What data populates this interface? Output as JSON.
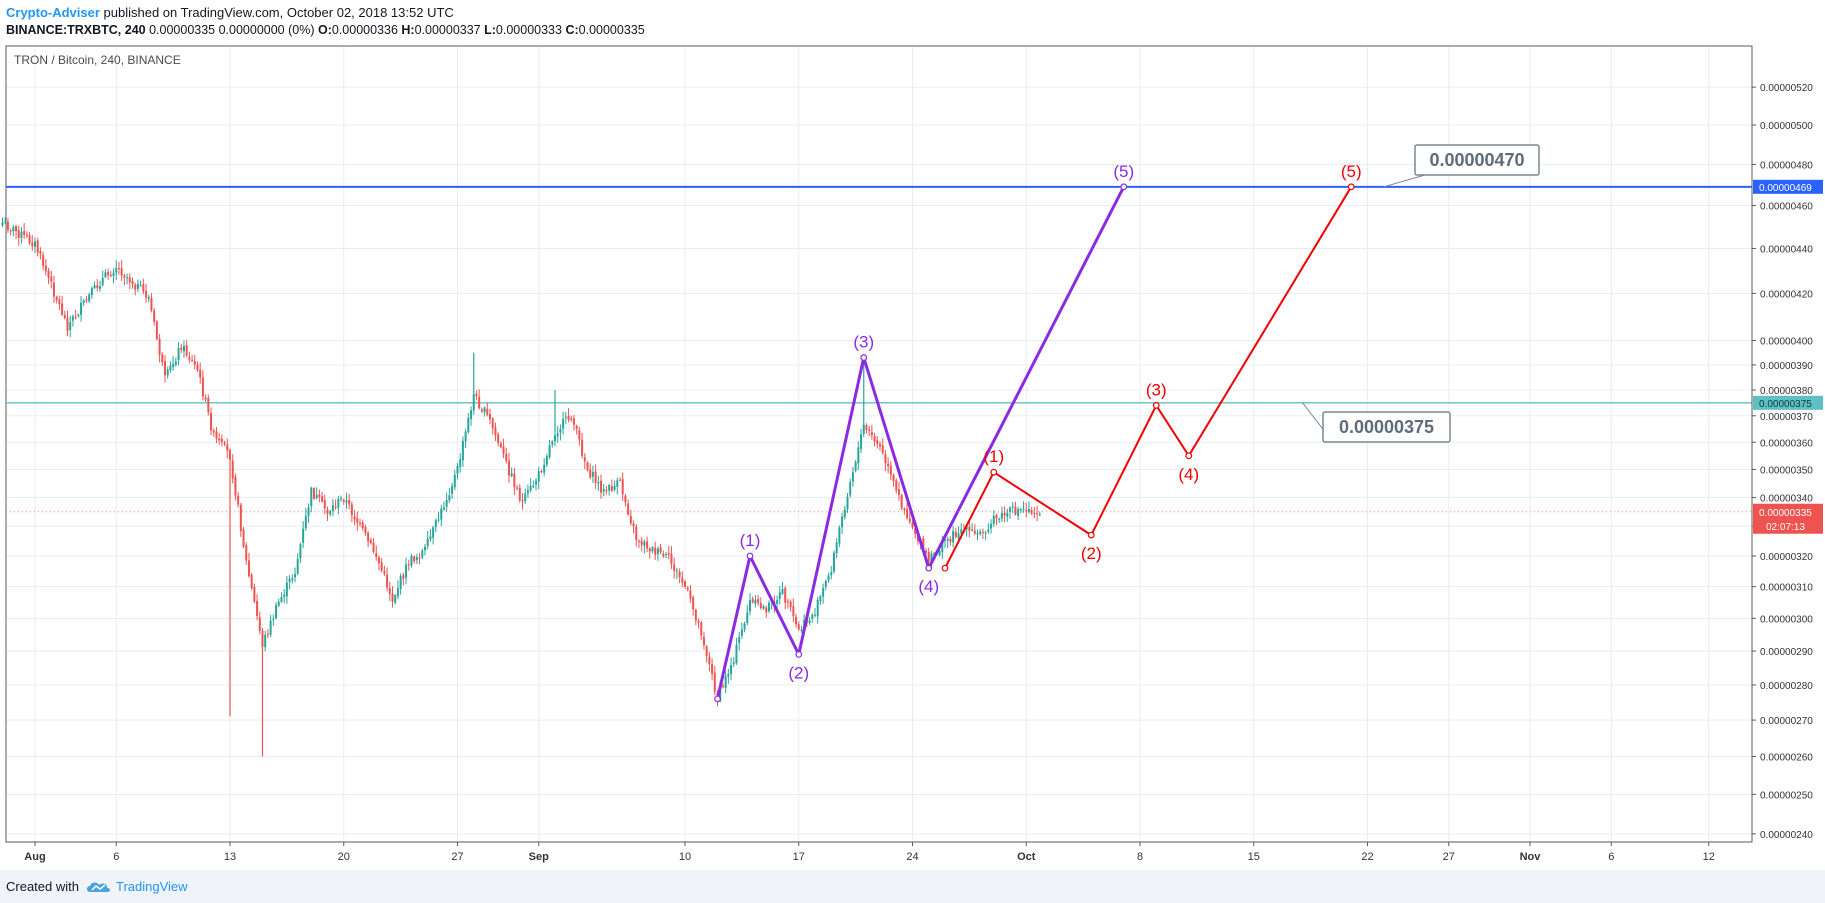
{
  "header": {
    "author": "Crypto-Adviser",
    "published": " published on TradingView.com, October 02, 2018 13:52 UTC",
    "symbol": "BINANCE:TRXBTC, 240",
    "quote": " 0.00000335 0.00000000 (0%) ",
    "o_label": "O:",
    "o_value": "0.00000336 ",
    "h_label": "H:",
    "h_value": "0.00000337 ",
    "l_label": "L:",
    "l_value": "0.00000333 ",
    "c_label": "C:",
    "c_value": "0.00000335"
  },
  "footer": {
    "created_with": "Created with",
    "brand": "TradingView",
    "logo_icon": "tradingview-cloud-icon"
  },
  "chart_data": {
    "type": "candlestick",
    "legend": "TRON / Bitcoin, 240, BINANCE",
    "colors": {
      "up": "#26a69a",
      "down": "#ef5350",
      "purple_wave": "#8a2be2",
      "red_wave": "#f00000",
      "target_high": "#2962ff",
      "target_low": "#5fc0c3",
      "label_box_text": "#5d6b7a"
    },
    "x_axis": {
      "ticks": [
        "Aug",
        "6",
        "13",
        "20",
        "27",
        "Sep",
        "10",
        "17",
        "24",
        "Oct",
        "8",
        "15",
        "22",
        "27",
        "Nov",
        "6",
        "12"
      ],
      "tick_dates": [
        "2018-08-01",
        "2018-08-06",
        "2018-08-13",
        "2018-08-20",
        "2018-08-27",
        "2018-09-01",
        "2018-09-10",
        "2018-09-17",
        "2018-09-24",
        "2018-10-01",
        "2018-10-08",
        "2018-10-15",
        "2018-10-22",
        "2018-10-27",
        "2018-11-01",
        "2018-11-06",
        "2018-11-12"
      ]
    },
    "y_axis": {
      "ticks": [
        "0.00000520",
        "0.00000500",
        "0.00000480",
        "0.00000460",
        "0.00000440",
        "0.00000420",
        "0.00000400",
        "0.00000390",
        "0.00000380",
        "0.00000370",
        "0.00000360",
        "0.00000350",
        "0.00000340",
        "0.00000330",
        "0.00000320",
        "0.00000310",
        "0.00000300",
        "0.00000290",
        "0.00000280",
        "0.00000270",
        "0.00000260",
        "0.00000250",
        "0.00000240"
      ],
      "tick_values": [
        520,
        500,
        480,
        460,
        440,
        420,
        400,
        390,
        380,
        370,
        360,
        350,
        340,
        330,
        320,
        310,
        300,
        290,
        280,
        270,
        260,
        250,
        240
      ],
      "value_unit": "1e-8 BTC",
      "scale": "log",
      "range": [
        238,
        522
      ]
    },
    "price_path": {
      "description_points": [
        {
          "date": "2018-07-30",
          "price": 452
        },
        {
          "date": "2018-08-01",
          "price": 442
        },
        {
          "date": "2018-08-03",
          "price": 406
        },
        {
          "date": "2018-08-05",
          "price": 425
        },
        {
          "date": "2018-08-06",
          "price": 432
        },
        {
          "date": "2018-08-08",
          "price": 418
        },
        {
          "date": "2018-08-09",
          "price": 384
        },
        {
          "date": "2018-08-10",
          "price": 398
        },
        {
          "date": "2018-08-11",
          "price": 388
        },
        {
          "date": "2018-08-12",
          "price": 362
        },
        {
          "date": "2018-08-13",
          "price": 355
        },
        {
          "date": "2018-08-14",
          "price": 318
        },
        {
          "date": "2018-08-15",
          "price": 292
        },
        {
          "date": "2018-08-16",
          "price": 305
        },
        {
          "date": "2018-08-17",
          "price": 315
        },
        {
          "date": "2018-08-18",
          "price": 342
        },
        {
          "date": "2018-08-19",
          "price": 335
        },
        {
          "date": "2018-08-20",
          "price": 340
        },
        {
          "date": "2018-08-22",
          "price": 320
        },
        {
          "date": "2018-08-23",
          "price": 306
        },
        {
          "date": "2018-08-24",
          "price": 318
        },
        {
          "date": "2018-08-25",
          "price": 322
        },
        {
          "date": "2018-08-26",
          "price": 335
        },
        {
          "date": "2018-08-27",
          "price": 350
        },
        {
          "date": "2018-08-28",
          "price": 378
        },
        {
          "date": "2018-08-29",
          "price": 368
        },
        {
          "date": "2018-08-30",
          "price": 352
        },
        {
          "date": "2018-08-31",
          "price": 338
        },
        {
          "date": "2018-09-01",
          "price": 348
        },
        {
          "date": "2018-09-02",
          "price": 364
        },
        {
          "date": "2018-09-03",
          "price": 370
        },
        {
          "date": "2018-09-04",
          "price": 350
        },
        {
          "date": "2018-09-05",
          "price": 342
        },
        {
          "date": "2018-09-06",
          "price": 345
        },
        {
          "date": "2018-09-07",
          "price": 326
        },
        {
          "date": "2018-09-08",
          "price": 322
        },
        {
          "date": "2018-09-09",
          "price": 319
        },
        {
          "date": "2018-09-10",
          "price": 310
        },
        {
          "date": "2018-09-11",
          "price": 296
        },
        {
          "date": "2018-09-12",
          "price": 276
        },
        {
          "date": "2018-09-13",
          "price": 288
        },
        {
          "date": "2018-09-14",
          "price": 305
        },
        {
          "date": "2018-09-15",
          "price": 303
        },
        {
          "date": "2018-09-16",
          "price": 308
        },
        {
          "date": "2018-09-17",
          "price": 296
        },
        {
          "date": "2018-09-18",
          "price": 302
        },
        {
          "date": "2018-09-19",
          "price": 316
        },
        {
          "date": "2018-09-20",
          "price": 342
        },
        {
          "date": "2018-09-21",
          "price": 366
        },
        {
          "date": "2018-09-22",
          "price": 358
        },
        {
          "date": "2018-09-23",
          "price": 342
        },
        {
          "date": "2018-09-24",
          "price": 330
        },
        {
          "date": "2018-09-25",
          "price": 318
        },
        {
          "date": "2018-09-26",
          "price": 325
        },
        {
          "date": "2018-09-27",
          "price": 329
        },
        {
          "date": "2018-09-28",
          "price": 327
        },
        {
          "date": "2018-09-29",
          "price": 332
        },
        {
          "date": "2018-09-30",
          "price": 335
        },
        {
          "date": "2018-10-01",
          "price": 336
        },
        {
          "date": "2018-10-02",
          "price": 335
        }
      ],
      "spikes": [
        {
          "date": "2018-08-13",
          "low": 271
        },
        {
          "date": "2018-08-15",
          "low": 260
        },
        {
          "date": "2018-08-28",
          "high": 395
        },
        {
          "date": "2018-09-02",
          "high": 380
        },
        {
          "date": "2018-09-21",
          "high": 392
        }
      ]
    },
    "wave_purple": {
      "labels": [
        "(1)",
        "(2)",
        "(3)",
        "(4)",
        "(5)"
      ],
      "points": [
        {
          "date": "2018-09-12",
          "price": 276
        },
        {
          "date": "2018-09-14",
          "price": 320
        },
        {
          "date": "2018-09-17",
          "price": 289
        },
        {
          "date": "2018-09-21",
          "price": 393
        },
        {
          "date": "2018-09-25",
          "price": 316
        },
        {
          "date": "2018-10-07",
          "price": 469
        }
      ]
    },
    "wave_red": {
      "labels": [
        "(1)",
        "(2)",
        "(3)",
        "(4)",
        "(5)"
      ],
      "points": [
        {
          "date": "2018-09-26",
          "price": 316
        },
        {
          "date": "2018-09-29",
          "price": 349
        },
        {
          "date": "2018-10-05",
          "price": 327
        },
        {
          "date": "2018-10-09",
          "price": 374
        },
        {
          "date": "2018-10-11",
          "price": 355
        },
        {
          "date": "2018-10-21",
          "price": 469
        }
      ]
    },
    "horizontal_lines": [
      {
        "price": 469,
        "label": "0.00000469",
        "color": "#2962ff"
      },
      {
        "price": 375,
        "label": "0.00000375",
        "color": "#5fc0c3"
      }
    ],
    "callouts": [
      {
        "text": "0.00000470",
        "anchor_date": "2018-10-23",
        "anchor_price": 469
      },
      {
        "text": "0.00000375",
        "anchor_date": "2018-10-18",
        "anchor_price": 375
      }
    ],
    "last_price": {
      "label": "0.00000335",
      "countdown": "02:07:13",
      "price": 335,
      "color": "#ef5350"
    }
  }
}
